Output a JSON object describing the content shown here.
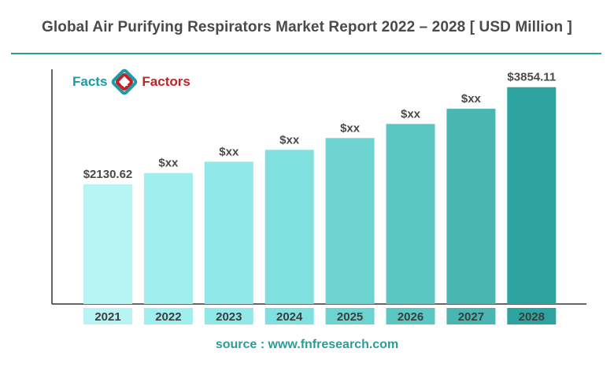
{
  "header": {
    "title": "Global Air Purifying Respirators Market Report 2022 – 2028 [ USD Million  ]"
  },
  "logo": {
    "word1": "Facts",
    "amp": "&",
    "word2": "Factors",
    "colors": {
      "primary": "#1e9aa6",
      "secondary": "#c0242b"
    }
  },
  "chart_data": {
    "type": "bar",
    "categories": [
      "2021",
      "2022",
      "2023",
      "2024",
      "2025",
      "2026",
      "2027",
      "2028"
    ],
    "values": [
      2130.62,
      2330,
      2530,
      2740,
      2950,
      3200,
      3470,
      3854.11
    ],
    "data_labels": [
      "$2130.62",
      "$xx",
      "$xx",
      "$xx",
      "$xx",
      "$xx",
      "$xx",
      "$3854.11"
    ],
    "ylim": [
      0,
      4200
    ],
    "bar_colors": [
      "#b7f4f4",
      "#a1eeee",
      "#91e8e8",
      "#7fe0df",
      "#6dd3d1",
      "#5cc6c3",
      "#4ab6b2",
      "#2ea4a0"
    ],
    "label_box_colors": [
      "#b7f4f4",
      "#a1eeee",
      "#91e8e8",
      "#7fe0df",
      "#6dd3d1",
      "#5cc6c3",
      "#4ab6b2",
      "#2ea4a0"
    ],
    "title": "Global Air Purifying Respirators Market Report 2022 – 2028 [ USD Million  ]",
    "xlabel": "",
    "ylabel": "",
    "grid": false
  },
  "footer": {
    "source": "source : www.fnfresearch.com"
  }
}
